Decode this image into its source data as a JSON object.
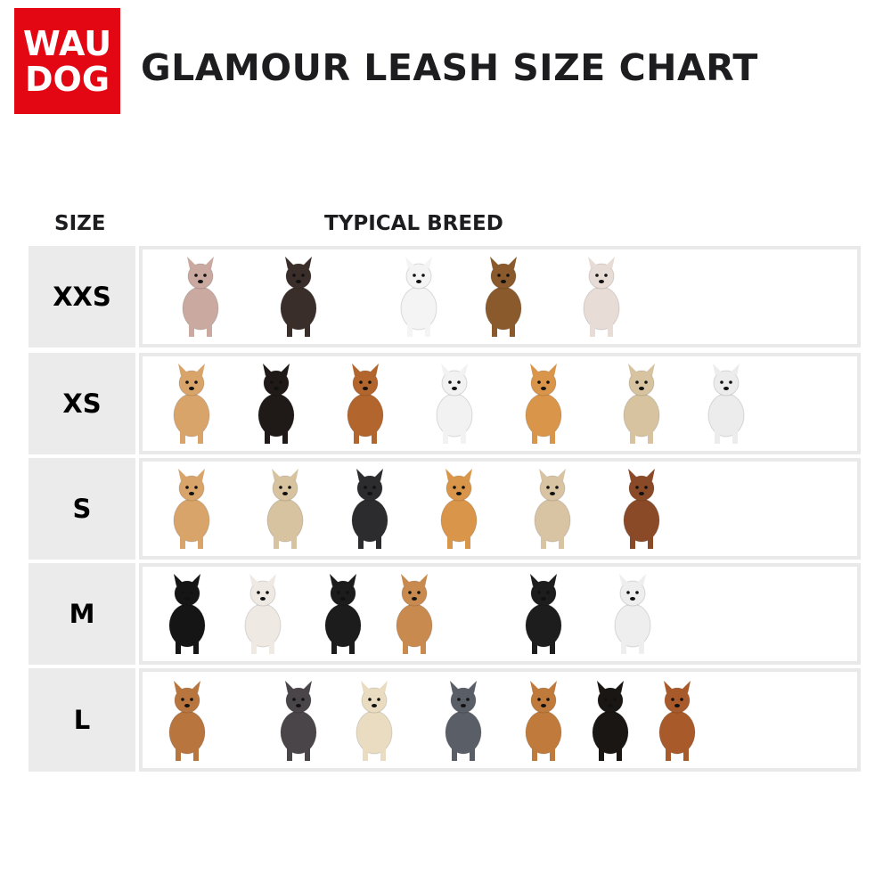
{
  "logo": {
    "line1": "WAU",
    "line2": "DOG",
    "color": "#e30613"
  },
  "title": "GLAMOUR LEASH SIZE CHART",
  "headers": {
    "size": "SIZE",
    "breed": "TYPICAL BREED"
  },
  "rows": [
    {
      "size": "XXS",
      "dogs": [
        "#c9a9a0",
        "#3a2e2a",
        "#f4f4f4",
        "#8a5a2c",
        "#e8dcd6"
      ]
    },
    {
      "size": "XS",
      "dogs": [
        "#d9a46a",
        "#1f1a17",
        "#b2652c",
        "#f2f2f2",
        "#d9954a",
        "#d7c3a0",
        "#ececec"
      ]
    },
    {
      "size": "S",
      "dogs": [
        "#d9a46a",
        "#d7c3a0",
        "#2c2b2d",
        "#d9954a",
        "#d8c4a2",
        "#8a4a28"
      ]
    },
    {
      "size": "M",
      "dogs": [
        "#151515",
        "#efe9e4",
        "#1c1c1c",
        "#c98a4f",
        "#1d1d1d",
        "#eeeeee"
      ]
    },
    {
      "size": "L",
      "dogs": [
        "#b9753e",
        "#4a4548",
        "#e9dcc1",
        "#5a5e66",
        "#c07b3c",
        "#1a1613",
        "#a85a2a"
      ]
    }
  ]
}
